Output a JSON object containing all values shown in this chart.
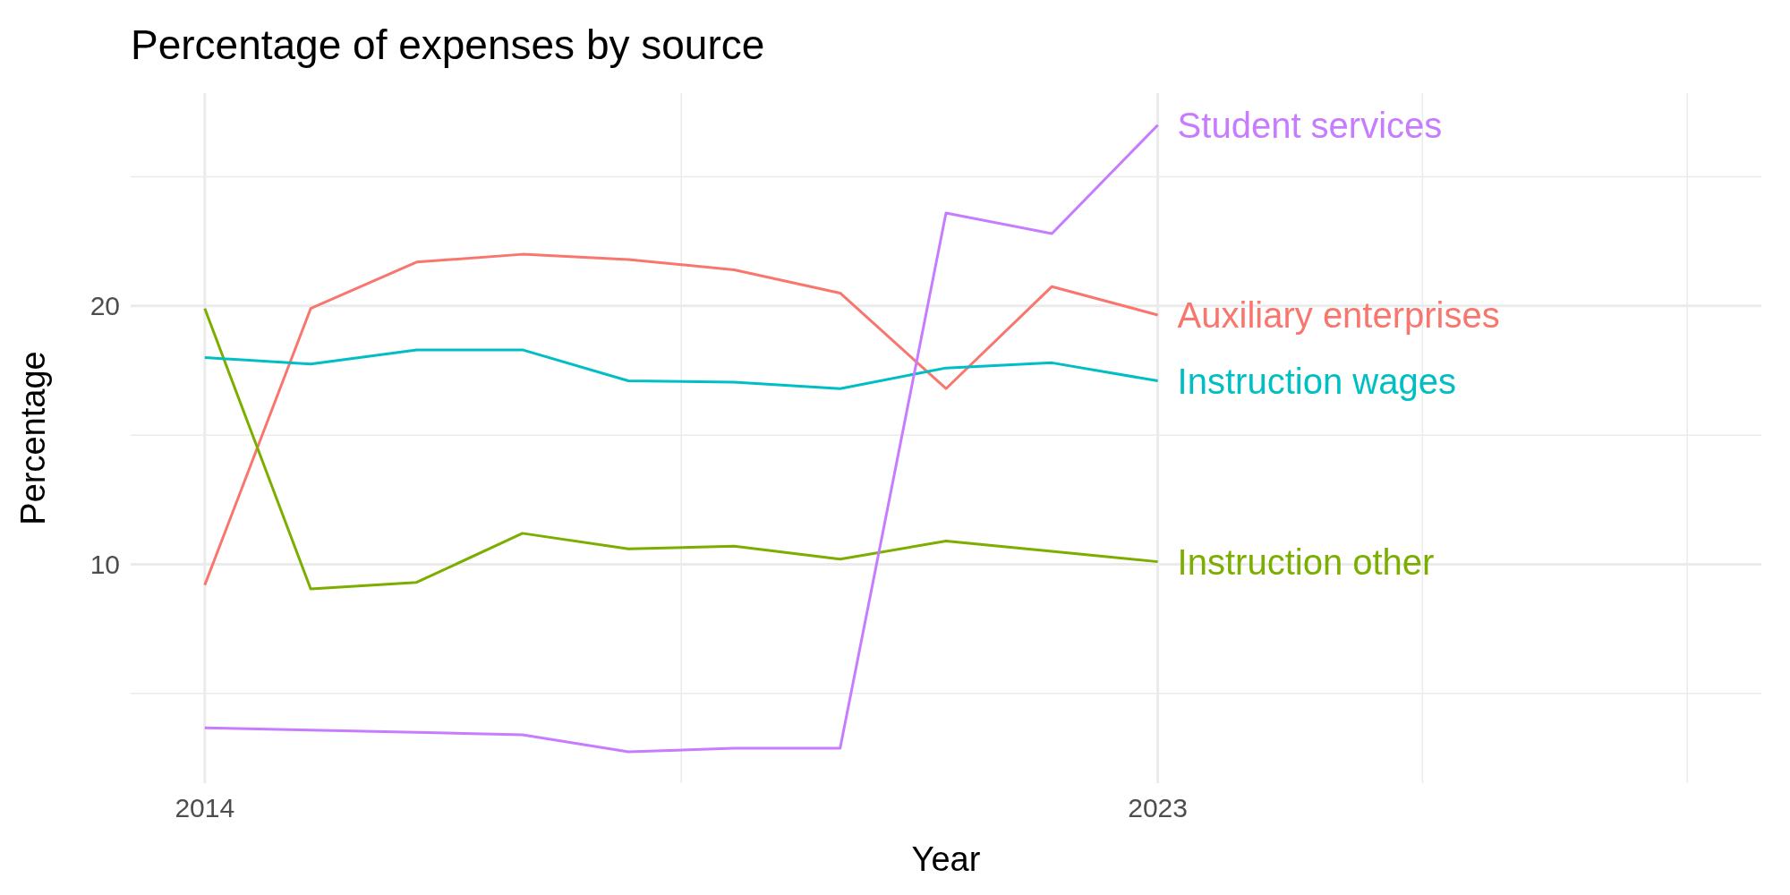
{
  "chart_data": {
    "type": "line",
    "title": "Percentage of expenses by source",
    "xlabel": "Year",
    "ylabel": "Percentage",
    "x": [
      2014,
      2015,
      2016,
      2017,
      2018,
      2019,
      2020,
      2021,
      2022,
      2023
    ],
    "series": [
      {
        "name": "Auxiliary enterprises",
        "color": "#f8766d",
        "values": [
          9.2,
          19.9,
          21.7,
          22.0,
          21.8,
          21.4,
          20.5,
          16.8,
          20.75,
          19.65
        ]
      },
      {
        "name": "Instruction other",
        "color": "#7cae00",
        "values": [
          19.9,
          9.05,
          9.3,
          11.2,
          10.6,
          10.7,
          10.2,
          10.9,
          10.5,
          10.1
        ]
      },
      {
        "name": "Instruction wages",
        "color": "#00bfc4",
        "values": [
          18.0,
          17.75,
          18.3,
          18.3,
          17.1,
          17.05,
          16.8,
          17.6,
          17.8,
          17.1
        ]
      },
      {
        "name": "Student services",
        "color": "#c77cff",
        "values": [
          3.67,
          3.58,
          3.5,
          3.4,
          2.74,
          2.88,
          2.88,
          23.6,
          22.8,
          27.0
        ]
      }
    ],
    "xlim": [
      2013.3,
      2028.7
    ],
    "ylim": [
      1.53,
      28.24
    ],
    "xticks": [
      2014,
      {
        "value": 2018.5,
        "label": null
      },
      2023,
      {
        "value": 2025.5,
        "label": null
      },
      {
        "value": 2028,
        "label": null
      }
    ],
    "yticks": [
      {
        "value": 5,
        "label": null
      },
      10,
      {
        "value": 15,
        "label": null
      },
      20,
      {
        "value": 25,
        "label": null
      }
    ],
    "grid": true,
    "marker": "none",
    "line_style": "solid"
  }
}
